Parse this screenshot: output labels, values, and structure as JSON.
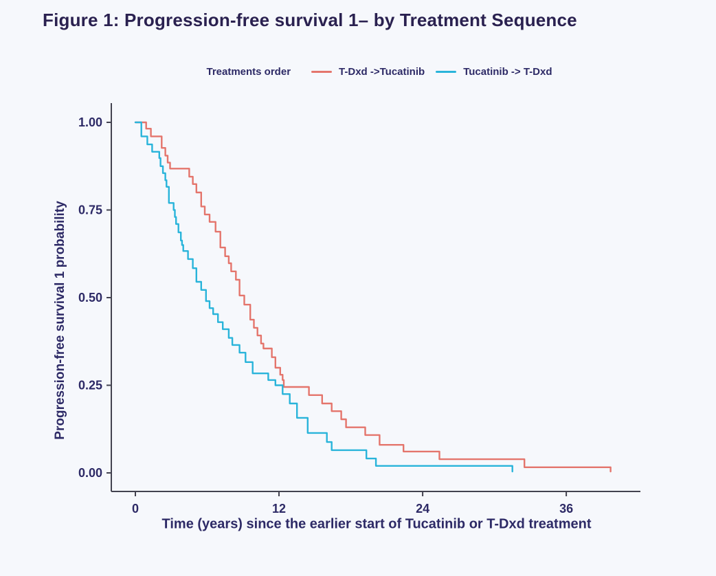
{
  "title": "Figure 1: Progression-free survival 1– by Treatment Sequence",
  "legend": {
    "title": "Treatments order",
    "items": [
      {
        "label": "T-Dxd ->Tucatinib",
        "color": "#e4756c"
      },
      {
        "label": "Tucatinib -> T-Dxd",
        "color": "#29b4da"
      }
    ]
  },
  "colors": {
    "background": "#f6f8fc",
    "title_text": "#2a2150",
    "axis_text": "#2d2a66",
    "axis_line": "#42424f",
    "series_tdxd_first": "#e4756c",
    "series_tucatinib_first": "#29b4da"
  },
  "chart_data": {
    "type": "line",
    "subtype": "kaplan-meier-step",
    "title": "Figure 1: Progression-free survival 1– by Treatment Sequence",
    "xlabel": "Time (years) since the earlier start of Tucatinib or T-Dxd treatment",
    "ylabel": "Progression-free survival 1 probability",
    "xlim": [
      0,
      42
    ],
    "ylim": [
      0,
      1.0
    ],
    "xticks": [
      0,
      12,
      24,
      36
    ],
    "xtick_labels": [
      "0",
      "12",
      "24",
      "36"
    ],
    "yticks": [
      0,
      0.25,
      0.5,
      0.75,
      1.0
    ],
    "ytick_labels": [
      "0.00",
      "0.25",
      "0.50",
      "0.75",
      "1.00"
    ],
    "grid": false,
    "legend_position": "top-center",
    "series": [
      {
        "name": "T-Dxd ->Tucatinib",
        "color": "#e4756c",
        "steps": [
          [
            0,
            1.0
          ],
          [
            0.9,
            0.982
          ],
          [
            1.3,
            0.96
          ],
          [
            2.2,
            0.927
          ],
          [
            2.5,
            0.905
          ],
          [
            2.7,
            0.885
          ],
          [
            2.9,
            0.868
          ],
          [
            4.5,
            0.845
          ],
          [
            4.8,
            0.824
          ],
          [
            5.1,
            0.8
          ],
          [
            5.5,
            0.76
          ],
          [
            5.8,
            0.737
          ],
          [
            6.2,
            0.716
          ],
          [
            6.7,
            0.688
          ],
          [
            7.1,
            0.643
          ],
          [
            7.5,
            0.618
          ],
          [
            7.8,
            0.598
          ],
          [
            8.0,
            0.575
          ],
          [
            8.4,
            0.551
          ],
          [
            8.7,
            0.506
          ],
          [
            9.1,
            0.48
          ],
          [
            9.6,
            0.437
          ],
          [
            9.9,
            0.414
          ],
          [
            10.2,
            0.392
          ],
          [
            10.5,
            0.369
          ],
          [
            10.7,
            0.355
          ],
          [
            11.4,
            0.33
          ],
          [
            11.7,
            0.3
          ],
          [
            12.1,
            0.28
          ],
          [
            12.3,
            0.265
          ],
          [
            12.4,
            0.245
          ],
          [
            14.5,
            0.222
          ],
          [
            15.6,
            0.198
          ],
          [
            16.4,
            0.176
          ],
          [
            17.2,
            0.153
          ],
          [
            17.6,
            0.13
          ],
          [
            19.2,
            0.108
          ],
          [
            20.4,
            0.08
          ],
          [
            22.4,
            0.061
          ],
          [
            25.4,
            0.039
          ],
          [
            32.5,
            0.016
          ],
          [
            39.7,
            0.004
          ]
        ]
      },
      {
        "name": "Tucatinib -> T-Dxd",
        "color": "#29b4da",
        "steps": [
          [
            0,
            1.0
          ],
          [
            0.5,
            0.96
          ],
          [
            1.0,
            0.937
          ],
          [
            1.4,
            0.916
          ],
          [
            2.0,
            0.898
          ],
          [
            2.1,
            0.875
          ],
          [
            2.3,
            0.855
          ],
          [
            2.5,
            0.835
          ],
          [
            2.6,
            0.816
          ],
          [
            2.8,
            0.77
          ],
          [
            3.2,
            0.75
          ],
          [
            3.3,
            0.73
          ],
          [
            3.4,
            0.71
          ],
          [
            3.6,
            0.686
          ],
          [
            3.8,
            0.663
          ],
          [
            3.9,
            0.65
          ],
          [
            4.0,
            0.633
          ],
          [
            4.4,
            0.61
          ],
          [
            4.8,
            0.584
          ],
          [
            5.1,
            0.545
          ],
          [
            5.5,
            0.522
          ],
          [
            5.9,
            0.49
          ],
          [
            6.2,
            0.47
          ],
          [
            6.5,
            0.453
          ],
          [
            6.9,
            0.43
          ],
          [
            7.3,
            0.41
          ],
          [
            7.8,
            0.385
          ],
          [
            8.1,
            0.365
          ],
          [
            8.7,
            0.343
          ],
          [
            9.2,
            0.316
          ],
          [
            9.8,
            0.284
          ],
          [
            11.1,
            0.265
          ],
          [
            11.7,
            0.25
          ],
          [
            12.3,
            0.225
          ],
          [
            12.9,
            0.198
          ],
          [
            13.5,
            0.157
          ],
          [
            14.4,
            0.114
          ],
          [
            16.0,
            0.088
          ],
          [
            16.4,
            0.065
          ],
          [
            19.3,
            0.041
          ],
          [
            20.1,
            0.02
          ],
          [
            31.5,
            0.004
          ]
        ]
      }
    ]
  }
}
